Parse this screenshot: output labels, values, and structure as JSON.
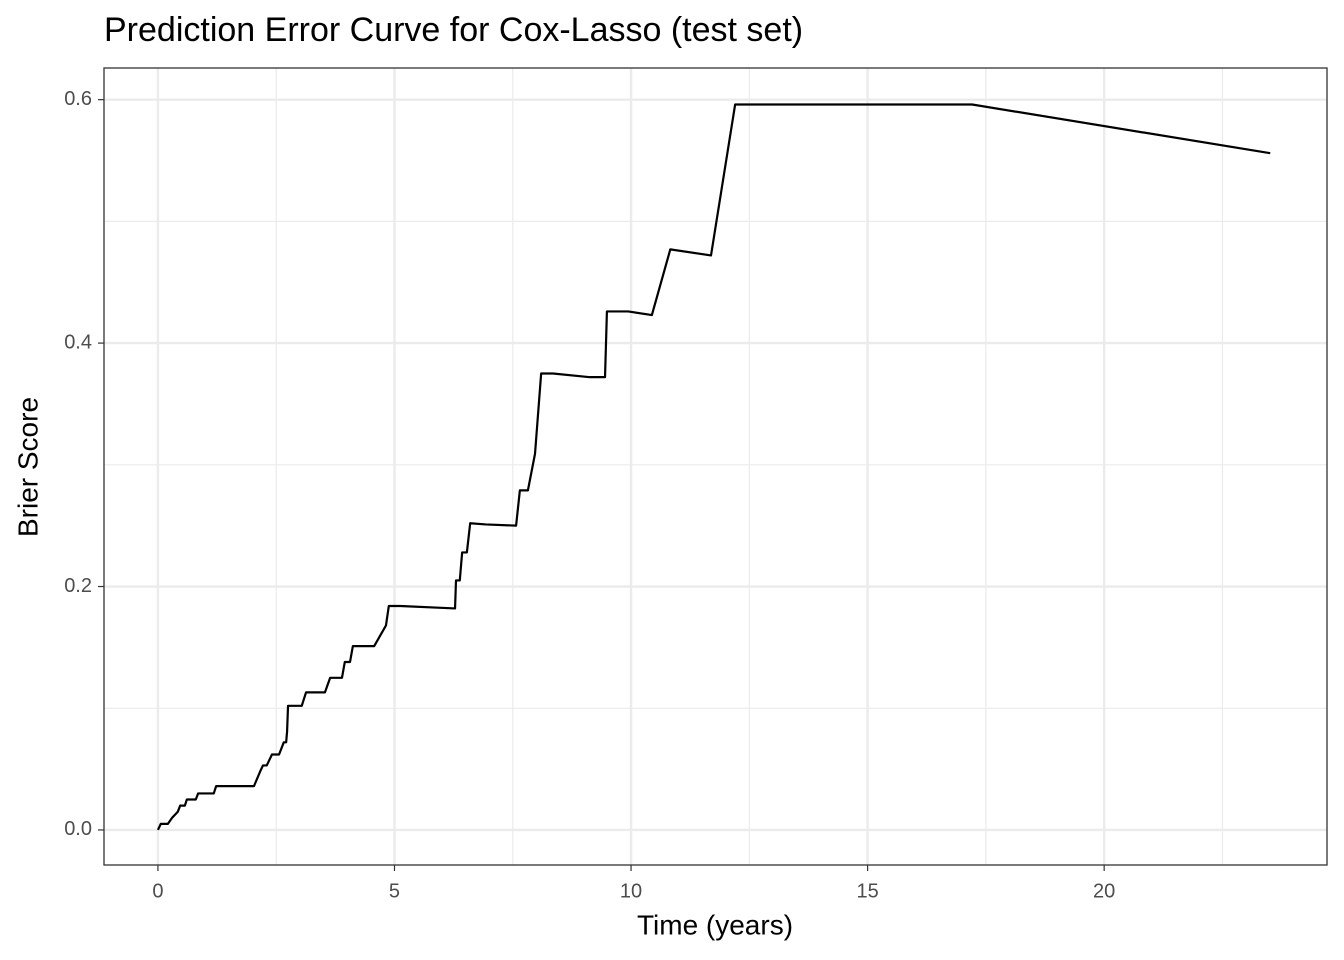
{
  "chart_data": {
    "type": "line",
    "title": "Prediction Error Curve for Cox-Lasso (test set)",
    "x_label": "Time (years)",
    "y_label": "Brier Score",
    "x": [
      0,
      0.06,
      0.21,
      0.3,
      0.42,
      0.47,
      0.57,
      0.61,
      0.8,
      0.85,
      1.18,
      1.23,
      2.03,
      2.16,
      2.22,
      2.3,
      2.41,
      2.56,
      2.66,
      2.71,
      2.73,
      2.75,
      3.04,
      3.13,
      3.53,
      3.64,
      3.89,
      3.95,
      4.06,
      4.12,
      4.57,
      4.82,
      4.88,
      5.12,
      6.28,
      6.3,
      6.38,
      6.43,
      6.53,
      6.6,
      6.93,
      7.57,
      7.65,
      7.82,
      7.97,
      8.1,
      8.35,
      9.13,
      9.45,
      9.49,
      9.94,
      10.44,
      10.83,
      11.69,
      12.2,
      17.21,
      23.51
    ],
    "series": [
      {
        "name": "Cox-Lasso",
        "color": "#000000",
        "values": [
          0,
          0.005,
          0.005,
          0.01,
          0.015,
          0.02,
          0.02,
          0.025,
          0.025,
          0.03,
          0.03,
          0.036,
          0.036,
          0.048,
          0.053,
          0.053,
          0.062,
          0.062,
          0.072,
          0.072,
          0.081,
          0.102,
          0.102,
          0.113,
          0.113,
          0.125,
          0.125,
          0.138,
          0.138,
          0.151,
          0.151,
          0.168,
          0.184,
          0.184,
          0.182,
          0.205,
          0.205,
          0.228,
          0.228,
          0.252,
          0.251,
          0.25,
          0.279,
          0.279,
          0.309,
          0.375,
          0.375,
          0.372,
          0.372,
          0.426,
          0.426,
          0.423,
          0.477,
          0.472,
          0.596,
          0.596,
          0.556
        ]
      }
    ],
    "xlim": [
      -1.14,
      24.71
    ],
    "ylim": [
      -0.0288,
      0.626
    ],
    "xticks": [
      0,
      5,
      10,
      15,
      20
    ],
    "yticks": [
      {
        "value": 0,
        "label": "0.0"
      },
      {
        "value": 0.2,
        "label": "0.2"
      },
      {
        "value": 0.4,
        "label": "0.4"
      },
      {
        "value": 0.6,
        "label": "0.6"
      }
    ],
    "x_minor_grid": [
      2.5,
      7.5,
      12.5,
      17.5,
      22.5
    ],
    "y_minor_grid": [
      0.1,
      0.3,
      0.5
    ],
    "grid": true
  }
}
